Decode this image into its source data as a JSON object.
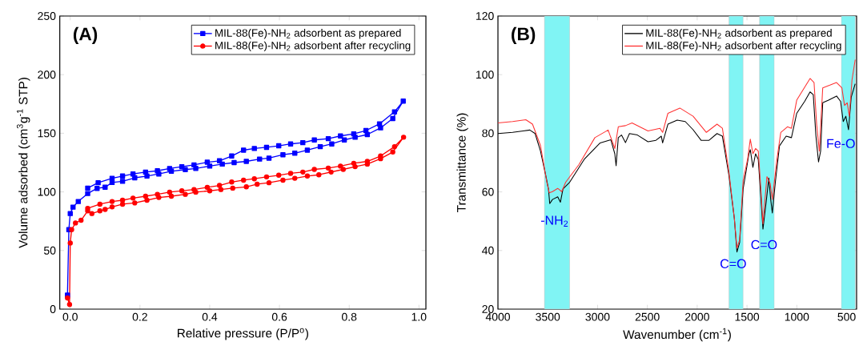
{
  "chart_data": [
    {
      "type": "line",
      "xlabel": "Relative pressure (P/P$^{o}$)",
      "ylabel": "Volume adsorbed (cm$^{3}$g$^{-1}$ STP)",
      "annotations": [
        "(A)"
      ],
      "xlim": [
        -0.03,
        1.02
      ],
      "ylim": [
        0,
        250
      ],
      "xticks": [
        {
          "value": 0,
          "label": "0.0"
        },
        0.2,
        0.4,
        0.6,
        0.8,
        {
          "value": 1,
          "label": "1.0"
        }
      ],
      "yticks": [
        0,
        50,
        100,
        150,
        200,
        250
      ],
      "legend": "top right",
      "series": [
        {
          "name": "MIL-88(Fe)-NH$_{2}$ adsorbent as prepared",
          "color": "#0000ff",
          "marker": "square",
          "x": [
            -0.008,
            -0.004,
            0.0,
            0.008,
            0.023,
            0.05,
            0.077,
            0.1,
            0.12,
            0.15,
            0.185,
            0.22,
            0.254,
            0.29,
            0.33,
            0.36,
            0.4,
            0.436,
            0.47,
            0.505,
            0.543,
            0.57,
            0.61,
            0.644,
            0.68,
            0.717,
            0.75,
            0.786,
            0.817,
            0.852,
            0.89,
            0.925,
            0.955,
            0.93,
            0.887,
            0.848,
            0.813,
            0.775,
            0.74,
            0.7,
            0.667,
            0.632,
            0.598,
            0.563,
            0.528,
            0.497,
            0.463,
            0.428,
            0.393,
            0.355,
            0.32,
            0.285,
            0.25,
            0.216,
            0.18,
            0.15,
            0.12,
            0.08,
            0.05
          ],
          "values": [
            11.9,
            67.8,
            81.5,
            87,
            91.8,
            98.6,
            103,
            104,
            108,
            109,
            112,
            113.5,
            115.3,
            117.6,
            119,
            120,
            122,
            123.7,
            125,
            126,
            128,
            128.8,
            131.7,
            133,
            135.6,
            138.6,
            140.9,
            144.3,
            146.6,
            148.9,
            154.6,
            162.6,
            177.4,
            168.3,
            158,
            152.3,
            149.5,
            147.7,
            145.4,
            144.3,
            142,
            140.9,
            139.3,
            138,
            137,
            135.6,
            130.6,
            126.5,
            125.3,
            123,
            121.5,
            119.9,
            118,
            116.9,
            115.3,
            113.5,
            111.6,
            107.8,
            103.2
          ]
        },
        {
          "name": "MIL-88(Fe)-NH$_{2}$ adsorbent after recycling",
          "color": "#ff0000",
          "marker": "circle",
          "x": [
            -0.008,
            -0.002,
            0.0,
            0.004,
            0.015,
            0.031,
            0.05,
            0.062,
            0.085,
            0.1,
            0.12,
            0.15,
            0.185,
            0.22,
            0.254,
            0.29,
            0.33,
            0.36,
            0.4,
            0.432,
            0.466,
            0.505,
            0.536,
            0.57,
            0.61,
            0.644,
            0.68,
            0.713,
            0.748,
            0.783,
            0.817,
            0.852,
            0.89,
            0.925,
            0.956,
            0.93,
            0.89,
            0.852,
            0.813,
            0.775,
            0.74,
            0.7,
            0.667,
            0.632,
            0.598,
            0.563,
            0.528,
            0.497,
            0.463,
            0.428,
            0.393,
            0.355,
            0.32,
            0.285,
            0.25,
            0.216,
            0.18,
            0.15,
            0.12,
            0.085,
            0.05
          ],
          "values": [
            9.6,
            3.9,
            56.4,
            67.8,
            73.5,
            75.8,
            83.8,
            81.5,
            83.8,
            85,
            87.2,
            89.5,
            90.6,
            92.9,
            95.2,
            96.3,
            97.9,
            99.8,
            100.9,
            102,
            103.2,
            104.3,
            106.6,
            107.8,
            110,
            111.6,
            113.5,
            114.6,
            116.9,
            119.2,
            121.5,
            123.7,
            128.3,
            134,
            146.6,
            138.6,
            130.6,
            126,
            124.4,
            122,
            120.3,
            119.2,
            116.9,
            115.8,
            114.2,
            112.8,
            111.2,
            110,
            108.4,
            105.5,
            103.9,
            102,
            100.9,
            99.8,
            97.9,
            96.3,
            94.7,
            92.9,
            91.8,
            89.5,
            86
          ]
        }
      ]
    },
    {
      "type": "line",
      "xlabel": "Wavenumber (cm$^{-1}$)",
      "ylabel": "Transmittance (%)",
      "annotations": [
        "(B)",
        "-NH$_{2}$",
        "C=O",
        "C=O",
        "Fe-O"
      ],
      "xlim": [
        4000,
        400
      ],
      "ylim": [
        20,
        120
      ],
      "xticks": [
        4000,
        3500,
        3000,
        2500,
        2000,
        1500,
        1000,
        500
      ],
      "yticks": [
        20,
        40,
        60,
        80,
        100,
        120
      ],
      "legend": "top right",
      "bands": [
        {
          "axis": "x",
          "from": 3533,
          "to": 3280,
          "color": "#80f4f4"
        },
        {
          "axis": "x",
          "from": 1681,
          "to": 1539,
          "color": "#80f4f4"
        },
        {
          "axis": "x",
          "from": 1374,
          "to": 1227,
          "color": "#80f4f4"
        },
        {
          "axis": "x",
          "from": 553,
          "to": 414,
          "color": "#80f4f4"
        }
      ],
      "series": [
        {
          "name": "MIL-88(Fe)-NH$_{2}$ adsorbent as prepared",
          "color": "#000000",
          "x": [
            4000,
            3853,
            3747,
            3680,
            3627,
            3573,
            3520,
            3493,
            3480,
            3453,
            3400,
            3373,
            3347,
            3280,
            3134,
            2974,
            2867,
            2827,
            2814,
            2792,
            2760,
            2720,
            2680,
            2600,
            2494,
            2414,
            2360,
            2347,
            2294,
            2201,
            2120,
            2041,
            1961,
            1881,
            1801,
            1747,
            1681,
            1627,
            1601,
            1574,
            1539,
            1507,
            1481,
            1467,
            1441,
            1414,
            1387,
            1361,
            1340,
            1308,
            1281,
            1262,
            1246,
            1214,
            1174,
            1107,
            1054,
            1001,
            921,
            867,
            835,
            809,
            782,
            761,
            740,
            681,
            601,
            561,
            534,
            508,
            481,
            454,
            414
          ],
          "values": [
            79.9,
            80.3,
            80.8,
            81.1,
            79.9,
            73.9,
            65.6,
            61,
            56,
            57.4,
            58.3,
            56.5,
            61,
            63.3,
            71.1,
            76.7,
            77.8,
            73,
            68.9,
            78.5,
            79.4,
            76.8,
            79.9,
            79.4,
            77.1,
            77.6,
            79,
            76.7,
            83.1,
            84.5,
            84,
            81.2,
            77.6,
            77.6,
            79.9,
            79,
            65.6,
            50.9,
            39.5,
            42.7,
            61,
            67.5,
            73,
            74.4,
            68.4,
            73,
            71.1,
            58.3,
            47.3,
            56.5,
            64.7,
            57.4,
            52.8,
            63.8,
            75.7,
            79,
            78.5,
            86.8,
            90.9,
            94.1,
            93.2,
            79.4,
            70.2,
            73.9,
            90.4,
            91.3,
            92.7,
            90.9,
            84,
            85.8,
            81.2,
            92.3,
            96.9
          ]
        },
        {
          "name": "MIL-88(Fe)-NH$_{2}$ adsorbent after recycling",
          "color": "#ff3333",
          "x": [
            4000,
            3853,
            3720,
            3653,
            3573,
            3507,
            3485,
            3453,
            3400,
            3360,
            3320,
            3187,
            3027,
            2894,
            2827,
            2792,
            2720,
            2654,
            2494,
            2374,
            2347,
            2294,
            2174,
            2041,
            1908,
            1801,
            1747,
            1681,
            1627,
            1601,
            1574,
            1539,
            1494,
            1467,
            1441,
            1414,
            1387,
            1361,
            1340,
            1300,
            1268,
            1246,
            1201,
            1161,
            1094,
            1054,
            1001,
            867,
            827,
            801,
            774,
            740,
            668,
            601,
            548,
            521,
            494,
            473,
            446,
            414
          ],
          "values": [
            83.5,
            84,
            84.6,
            83.1,
            75.8,
            62.9,
            59.7,
            60.1,
            61.2,
            60.1,
            63.3,
            69.3,
            78.5,
            81.1,
            74.8,
            82.2,
            82.6,
            83.5,
            80.8,
            81.7,
            80.3,
            86.8,
            88.6,
            85.8,
            80.3,
            83.1,
            81.7,
            66.6,
            50.9,
            40.8,
            43.6,
            63.8,
            71.1,
            78,
            73,
            74.8,
            73.9,
            61,
            49.1,
            65.2,
            62.9,
            57.4,
            70.7,
            80.3,
            82.2,
            81.7,
            91.3,
            98.7,
            97.3,
            83.1,
            73.9,
            95.5,
            96.4,
            97.3,
            95.5,
            89.5,
            90.4,
            85.8,
            98.2,
            105.1
          ]
        }
      ]
    }
  ]
}
